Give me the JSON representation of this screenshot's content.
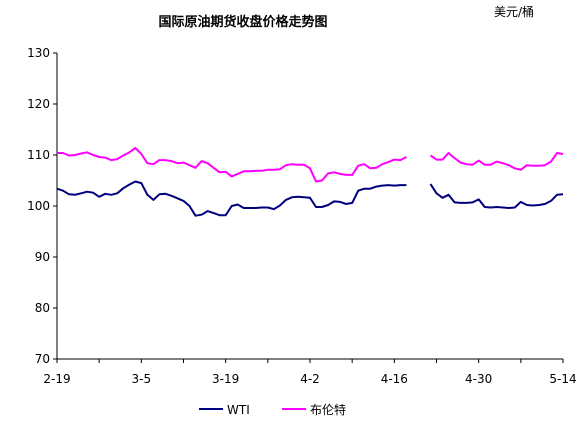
{
  "chart_data": {
    "type": "line",
    "title": "国际原油期货收盘价格走势图",
    "unit": "美元/桶",
    "ylim": [
      70,
      130
    ],
    "yticks": [
      70,
      80,
      90,
      100,
      110,
      120,
      130
    ],
    "xticks": [
      "2-19",
      "3-5",
      "3-19",
      "4-2",
      "4-16",
      "4-30",
      "5-14"
    ],
    "xrange": [
      0,
      84
    ],
    "grid": false,
    "legend_position": "bottom",
    "series": [
      {
        "name": "WTI",
        "color": "#00007f",
        "points": [
          [
            0,
            103.4
          ],
          [
            1,
            103.0
          ],
          [
            2,
            102.3
          ],
          [
            3,
            102.2
          ],
          [
            4,
            102.5
          ],
          [
            5,
            102.8
          ],
          [
            6,
            102.6
          ],
          [
            7,
            101.8
          ],
          [
            8,
            102.4
          ],
          [
            9,
            102.2
          ],
          [
            10,
            102.5
          ],
          [
            11,
            103.5
          ],
          [
            12,
            104.2
          ],
          [
            13,
            104.8
          ],
          [
            14,
            104.5
          ],
          [
            15,
            102.2
          ],
          [
            16,
            101.2
          ],
          [
            17,
            102.3
          ],
          [
            18,
            102.4
          ],
          [
            19,
            102.0
          ],
          [
            20,
            101.5
          ],
          [
            21,
            101.0
          ],
          [
            22,
            100.0
          ],
          [
            23,
            98.1
          ],
          [
            24,
            98.3
          ],
          [
            25,
            99.0
          ],
          [
            26,
            98.6
          ],
          [
            27,
            98.2
          ],
          [
            28,
            98.2
          ],
          [
            29,
            100.0
          ],
          [
            30,
            100.3
          ],
          [
            31,
            99.6
          ],
          [
            32,
            99.6
          ],
          [
            33,
            99.6
          ],
          [
            34,
            99.7
          ],
          [
            35,
            99.7
          ],
          [
            36,
            99.4
          ],
          [
            37,
            100.1
          ],
          [
            38,
            101.2
          ],
          [
            39,
            101.7
          ],
          [
            40,
            101.8
          ],
          [
            41,
            101.7
          ],
          [
            42,
            101.6
          ],
          [
            43,
            99.8
          ],
          [
            44,
            99.8
          ],
          [
            45,
            100.2
          ],
          [
            46,
            100.9
          ],
          [
            47,
            100.8
          ],
          [
            48,
            100.4
          ],
          [
            49,
            100.6
          ],
          [
            50,
            103.0
          ],
          [
            51,
            103.4
          ],
          [
            52,
            103.4
          ],
          [
            53,
            103.8
          ],
          [
            54,
            104.0
          ],
          [
            55,
            104.1
          ],
          [
            56,
            104.0
          ],
          [
            57,
            104.1
          ],
          [
            58,
            104.1
          ],
          null,
          [
            62,
            104.3
          ],
          [
            63,
            102.5
          ],
          [
            64,
            101.6
          ],
          [
            65,
            102.2
          ],
          [
            66,
            100.7
          ],
          [
            67,
            100.6
          ],
          [
            68,
            100.6
          ],
          [
            69,
            100.7
          ],
          [
            70,
            101.3
          ],
          [
            71,
            99.8
          ],
          [
            72,
            99.7
          ],
          [
            73,
            99.8
          ],
          [
            74,
            99.7
          ],
          [
            75,
            99.6
          ],
          [
            76,
            99.7
          ],
          [
            77,
            100.8
          ],
          [
            78,
            100.2
          ],
          [
            79,
            100.1
          ],
          [
            80,
            100.2
          ],
          [
            81,
            100.4
          ],
          [
            82,
            101.0
          ],
          [
            83,
            102.2
          ],
          [
            84,
            102.3
          ]
        ]
      },
      {
        "name": "布伦特",
        "color": "#ff00ff",
        "points": [
          [
            0,
            110.4
          ],
          [
            1,
            110.4
          ],
          [
            2,
            109.9
          ],
          [
            3,
            110.0
          ],
          [
            4,
            110.3
          ],
          [
            5,
            110.5
          ],
          [
            6,
            110.0
          ],
          [
            7,
            109.6
          ],
          [
            8,
            109.5
          ],
          [
            9,
            109.0
          ],
          [
            10,
            109.2
          ],
          [
            11,
            109.9
          ],
          [
            12,
            110.5
          ],
          [
            13,
            111.4
          ],
          [
            14,
            110.2
          ],
          [
            15,
            108.4
          ],
          [
            16,
            108.2
          ],
          [
            17,
            109.0
          ],
          [
            18,
            109.0
          ],
          [
            19,
            108.8
          ],
          [
            20,
            108.4
          ],
          [
            21,
            108.5
          ],
          [
            22,
            108.0
          ],
          [
            23,
            107.5
          ],
          [
            24,
            108.8
          ],
          [
            25,
            108.4
          ],
          [
            26,
            107.5
          ],
          [
            27,
            106.6
          ],
          [
            28,
            106.7
          ],
          [
            29,
            105.8
          ],
          [
            30,
            106.3
          ],
          [
            31,
            106.8
          ],
          [
            32,
            106.8
          ],
          [
            33,
            106.9
          ],
          [
            34,
            106.9
          ],
          [
            35,
            107.1
          ],
          [
            36,
            107.1
          ],
          [
            37,
            107.2
          ],
          [
            38,
            108.0
          ],
          [
            39,
            108.2
          ],
          [
            40,
            108.1
          ],
          [
            41,
            108.1
          ],
          [
            42,
            107.4
          ],
          [
            43,
            104.8
          ],
          [
            44,
            105.0
          ],
          [
            45,
            106.4
          ],
          [
            46,
            106.6
          ],
          [
            47,
            106.3
          ],
          [
            48,
            106.1
          ],
          [
            49,
            106.1
          ],
          [
            50,
            107.9
          ],
          [
            51,
            108.2
          ],
          [
            52,
            107.4
          ],
          [
            53,
            107.5
          ],
          [
            54,
            108.2
          ],
          [
            55,
            108.6
          ],
          [
            56,
            109.1
          ],
          [
            57,
            109.0
          ],
          [
            58,
            109.6
          ],
          null,
          [
            62,
            109.9
          ],
          [
            63,
            109.1
          ],
          [
            64,
            109.1
          ],
          [
            65,
            110.4
          ],
          [
            66,
            109.4
          ],
          [
            67,
            108.5
          ],
          [
            68,
            108.2
          ],
          [
            69,
            108.1
          ],
          [
            70,
            108.9
          ],
          [
            71,
            108.1
          ],
          [
            72,
            108.1
          ],
          [
            73,
            108.7
          ],
          [
            74,
            108.4
          ],
          [
            75,
            108.0
          ],
          [
            76,
            107.4
          ],
          [
            77,
            107.1
          ],
          [
            78,
            108.0
          ],
          [
            79,
            107.9
          ],
          [
            80,
            107.9
          ],
          [
            81,
            108.0
          ],
          [
            82,
            108.7
          ],
          [
            83,
            110.4
          ],
          [
            84,
            110.2
          ]
        ]
      }
    ]
  }
}
